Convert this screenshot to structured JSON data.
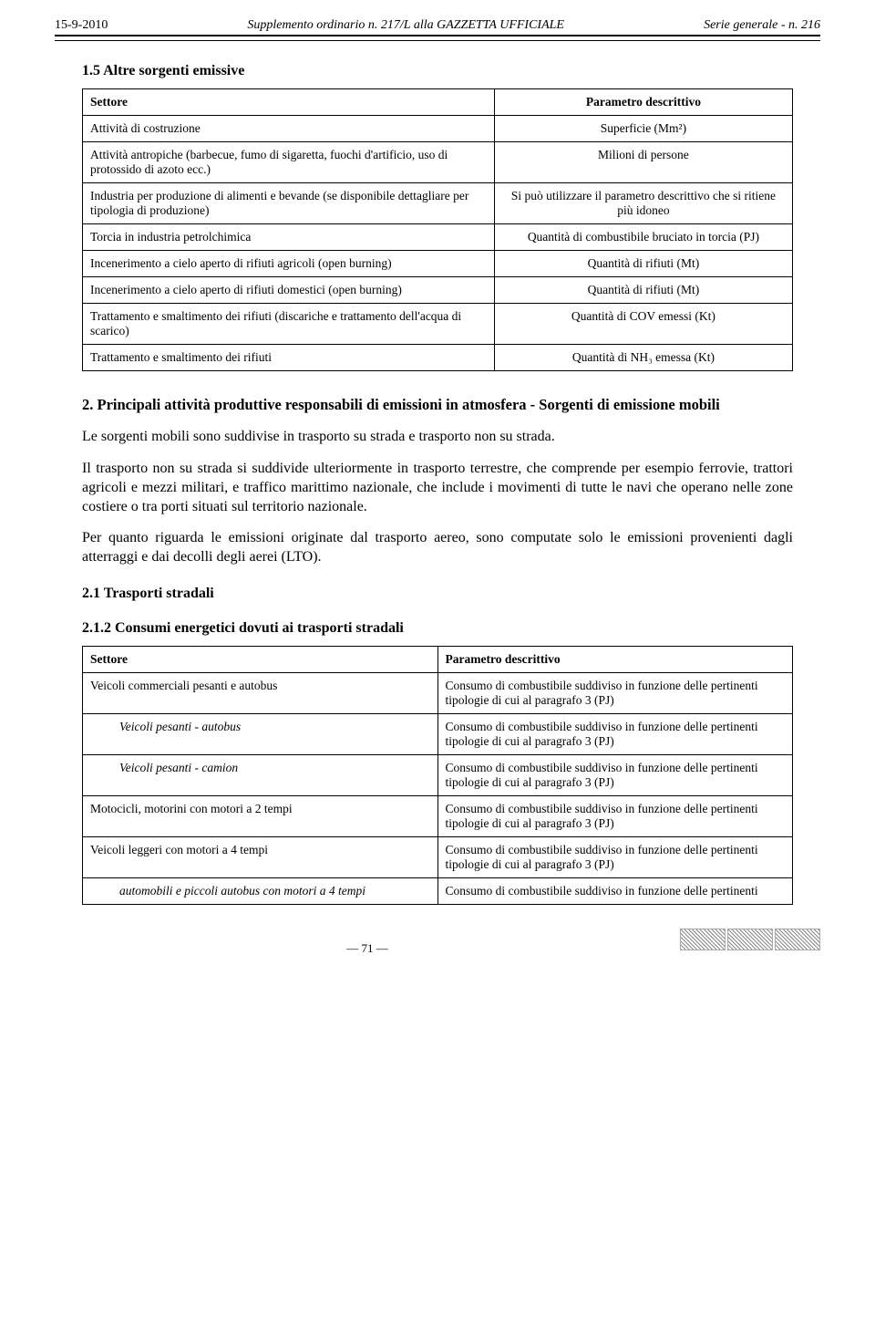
{
  "header": {
    "date": "15-9-2010",
    "center": "Supplemento ordinario n. 217/L alla GAZZETTA UFFICIALE",
    "right": "Serie generale - n. 216"
  },
  "section15": {
    "title": "1.5 Altre sorgenti emissive",
    "col_left": "Settore",
    "col_right": "Parametro descrittivo",
    "rows": [
      {
        "l": "Attività di costruzione",
        "r": "Superficie (Mm²)"
      },
      {
        "l": "Attività antropiche (barbecue, fumo di sigaretta, fuochi d'artificio, uso di protossido di azoto ecc.)",
        "r": "Milioni di persone"
      },
      {
        "l": "Industria per produzione di alimenti e bevande (se disponibile dettagliare per tipologia di produzione)",
        "r": "Si può utilizzare il parametro descrittivo che si ritiene più idoneo"
      },
      {
        "l": "Torcia in industria petrolchimica",
        "r": "Quantità di combustibile bruciato in torcia (PJ)"
      },
      {
        "l": "Incenerimento a cielo aperto di rifiuti agricoli (open burning)",
        "r": "Quantità di rifiuti (Mt)"
      },
      {
        "l": "Incenerimento a cielo aperto di rifiuti domestici (open burning)",
        "r": "Quantità di rifiuti (Mt)"
      },
      {
        "l": "Trattamento e smaltimento dei rifiuti (discariche e trattamento dell'acqua di scarico)",
        "r": "Quantità di COV emessi (Kt)"
      },
      {
        "l": "Trattamento e smaltimento dei rifiuti",
        "r": "Quantità di NH₃ emessa (Kt)"
      }
    ]
  },
  "section2": {
    "title": "2. Principali attività produttive responsabili di emissioni in atmosfera - Sorgenti di emissione mobili",
    "para1": "Le sorgenti mobili sono suddivise in trasporto su strada e trasporto non su strada.",
    "para2": "Il trasporto non su strada si suddivide ulteriormente in trasporto terrestre, che comprende per esempio ferrovie, trattori agricoli e mezzi militari, e traffico marittimo nazionale, che include i movimenti di tutte le navi che operano nelle zone costiere o tra porti situati sul territorio nazionale.",
    "para3": "Per quanto riguarda le emissioni originate dal trasporto aereo, sono computate solo le emissioni provenienti dagli atterraggi e dai decolli degli aerei (LTO)."
  },
  "section21": {
    "title": "2.1 Trasporti stradali"
  },
  "section212": {
    "title": "2.1.2 Consumi energetici dovuti ai trasporti stradali",
    "col_left": "Settore",
    "col_right": "Parametro descrittivo",
    "rows": [
      {
        "l": "Veicoli commerciali pesanti e autobus",
        "r": "Consumo di combustibile suddiviso in funzione delle pertinenti tipologie di cui al paragrafo 3 (PJ)",
        "italic": false
      },
      {
        "l": "Veicoli pesanti - autobus",
        "r": "Consumo di combustibile suddiviso in funzione delle pertinenti tipologie di cui al paragrafo 3 (PJ)",
        "italic": true
      },
      {
        "l": "Veicoli pesanti - camion",
        "r": "Consumo di combustibile suddiviso in funzione delle pertinenti tipologie di cui al paragrafo 3 (PJ)",
        "italic": true
      },
      {
        "l": "Motocicli, motorini con motori a 2 tempi",
        "r": "Consumo di combustibile suddiviso in funzione delle pertinenti tipologie di cui al paragrafo 3 (PJ)",
        "italic": false
      },
      {
        "l": "Veicoli leggeri con motori a 4 tempi",
        "r": "Consumo di combustibile suddiviso in funzione delle pertinenti tipologie di cui al paragrafo 3 (PJ)",
        "italic": false
      },
      {
        "l": "automobili e piccoli autobus con motori a 4 tempi",
        "r": "Consumo di combustibile suddiviso in funzione delle pertinenti",
        "italic": true
      }
    ]
  },
  "footer": {
    "page": "— 71 —"
  }
}
